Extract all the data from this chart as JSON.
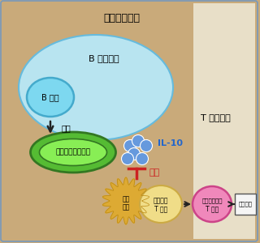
{
  "bg_color": "#c9aa7a",
  "border_color": "#7799bb",
  "title": "所属リンパ節",
  "b_follicle_color": "#b8e4f0",
  "b_follicle_border": "#66bbdd",
  "b_cell_color": "#7dd8f0",
  "b_cell_border": "#44aacc",
  "plasmablast_color_outer": "#55bb33",
  "plasmablast_color_inner": "#88ee55",
  "plasmablast_border": "#337722",
  "naive_t_color": "#f0dd88",
  "naive_t_border": "#ccaa44",
  "dendritic_color": "#ddaa33",
  "effector_t_color": "#f088bb",
  "effector_t_border": "#cc4488",
  "il10_color": "#6699dd",
  "inhibit_color": "#cc2222",
  "arrow_color": "#222222",
  "box_color": "#f5f5f5",
  "box_border": "#555555",
  "t_region_text": "T 細胞領域",
  "b_follicle_text": "B 細胞濾胞",
  "b_cell_text": "B 細胞",
  "bunka_text": "分化",
  "plasmablast_text": "プラズマブラスト",
  "il10_text": "IL-10",
  "sogai_text": "阻害",
  "dendritic_text1": "樹状",
  "dendritic_text2": "細胞",
  "naive_t_line1": "ナイーブ",
  "naive_t_line2": "T 細胞",
  "effector_t_line1": "エフェクター",
  "effector_t_line2": "T 細胞",
  "brain_text": "脳脊髄炎"
}
